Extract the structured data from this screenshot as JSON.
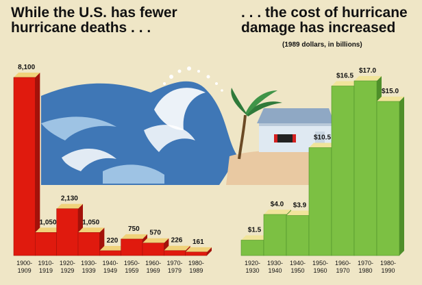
{
  "headline_left": {
    "line1": "While the U.S. has fewer",
    "line2": "hurricane deaths . . ."
  },
  "headline_right": {
    "line1": ". . . the cost of hurricane",
    "line2": "damage has increased",
    "subtitle": "(1989 dollars, in billions)"
  },
  "colors": {
    "deaths_front": "#e01a0e",
    "deaths_top": "#f0d27a",
    "deaths_side": "#a3120a",
    "damage_front": "#7cc043",
    "damage_top": "#f0e49a",
    "damage_side": "#4f8f2a",
    "ocean": "#3f77b6",
    "wave_light": "#a9cbe9",
    "background": "#efe6c6"
  },
  "illustration": [
    "wave-icon",
    "house-icon",
    "palm-tree-icon"
  ],
  "chart_data": [
    {
      "type": "bar",
      "title": "While the U.S. has fewer hurricane deaths . . .",
      "xlabel": "",
      "ylabel": "",
      "ylim": [
        0,
        8100
      ],
      "grid": false,
      "categories": [
        [
          "1900-",
          "1909"
        ],
        [
          "1910-",
          "1919"
        ],
        [
          "1920-",
          "1929"
        ],
        [
          "1930-",
          "1939"
        ],
        [
          "1940-",
          "1949"
        ],
        [
          "1950-",
          "1959"
        ],
        [
          "1960-",
          "1969"
        ],
        [
          "1970-",
          "1979"
        ],
        [
          "1980-",
          "1989"
        ]
      ],
      "values": [
        8100,
        1050,
        2130,
        1050,
        220,
        750,
        570,
        226,
        161
      ],
      "value_labels": [
        "8,100",
        "1,050",
        "2,130",
        "1,050",
        "220",
        "750",
        "570",
        "226",
        "161"
      ]
    },
    {
      "type": "bar",
      "title": ". . . the cost of hurricane damage has increased",
      "subtitle": "(1989 dollars, in billions)",
      "xlabel": "",
      "ylabel": "",
      "ylim": [
        0,
        17.0
      ],
      "grid": false,
      "categories": [
        [
          "1920-",
          "1930"
        ],
        [
          "1930-",
          "1940"
        ],
        [
          "1940-",
          "1950"
        ],
        [
          "1950-",
          "1960"
        ],
        [
          "1960-",
          "1970"
        ],
        [
          "1970-",
          "1980"
        ],
        [
          "1980-",
          "1990"
        ]
      ],
      "values": [
        1.5,
        4.0,
        3.9,
        10.5,
        16.5,
        17.0,
        15.0
      ],
      "value_labels": [
        "$1.5",
        "$4.0",
        "$3.9",
        "$10.5",
        "$16.5",
        "$17.0",
        "$15.0"
      ]
    }
  ]
}
